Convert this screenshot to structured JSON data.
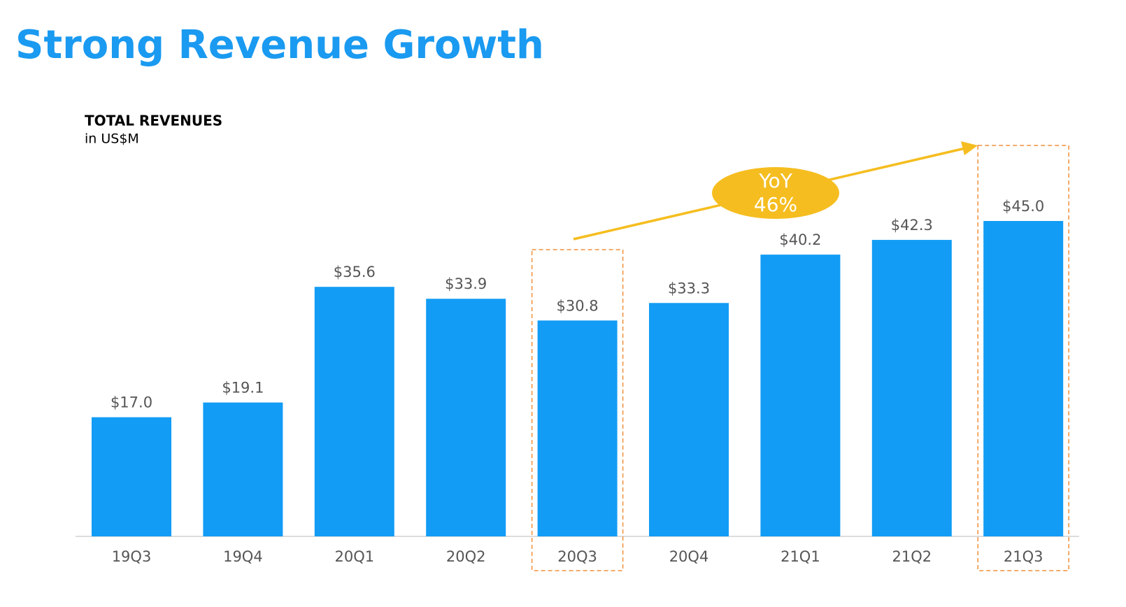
{
  "chart_data": {
    "type": "bar",
    "title": "Strong Revenue Growth",
    "subtitle": "TOTAL REVENUES",
    "unit_label": "in US$M",
    "annotation": {
      "line1": "YoY",
      "line2": "46%"
    },
    "categories": [
      "19Q3",
      "19Q4",
      "20Q1",
      "20Q2",
      "20Q3",
      "20Q4",
      "21Q1",
      "21Q2",
      "21Q3"
    ],
    "values": [
      17.0,
      19.1,
      35.6,
      33.9,
      30.8,
      33.3,
      40.2,
      42.3,
      45.0
    ],
    "value_labels": [
      "$17.0",
      "$19.1",
      "$35.6",
      "$33.9",
      "$30.8",
      "$33.3",
      "$40.2",
      "$42.3",
      "$45.0"
    ],
    "color": "#129cf5"
  }
}
